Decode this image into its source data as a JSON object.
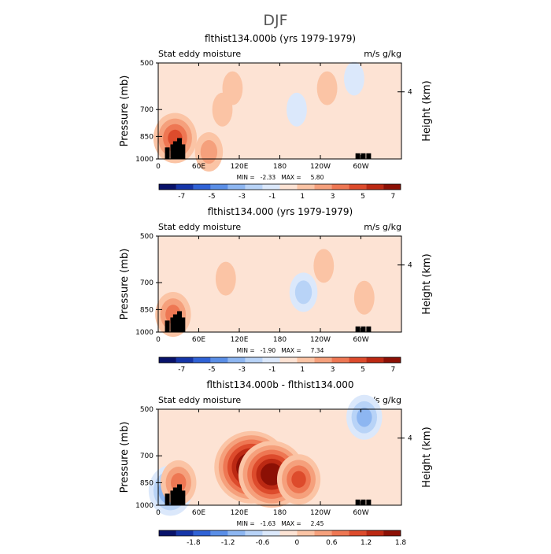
{
  "page_title": "DJF",
  "panels": [
    {
      "title": "flthist134.000b (yrs 1979-1979)",
      "left_label": "Stat eddy moisture",
      "right_label": "m/s g/kg",
      "stats": "MIN =   -2.33   MAX =     5.80",
      "colorbar_ticks": [
        "-7",
        "-5",
        "-3",
        "-1",
        "1",
        "3",
        "5",
        "7"
      ]
    },
    {
      "title": "flthist134.000 (yrs 1979-1979)",
      "left_label": "Stat eddy moisture",
      "right_label": "m/s g/kg",
      "stats": "MIN =   -1.90   MAX =     7.34",
      "colorbar_ticks": [
        "-7",
        "-5",
        "-3",
        "-1",
        "1",
        "3",
        "5",
        "7"
      ]
    },
    {
      "title": "flthist134.000b - flthist134.000",
      "left_label": "Stat eddy moisture",
      "right_label": "m/s g/kg",
      "stats": "MIN =   -1.63   MAX =     2.45",
      "colorbar_ticks": [
        "-1.8",
        "-1.2",
        "-0.6",
        "0",
        "0.6",
        "1.2",
        "1.8"
      ]
    }
  ],
  "axes": {
    "ylabel": "Pressure (mb)",
    "y2label": "Height (km)",
    "yticks": [
      "500",
      "700",
      "850",
      "1000"
    ],
    "y2ticks": [
      "4"
    ],
    "xticks": [
      "0",
      "60E",
      "120E",
      "180",
      "120W",
      "60W"
    ]
  },
  "colors": {
    "scale": [
      "#08126a",
      "#1535a8",
      "#2f62d6",
      "#5a8ee6",
      "#8db6f1",
      "#b8d3f7",
      "#dbe8fb",
      "#fde3d4",
      "#fbc4a5",
      "#f5a07c",
      "#ee7753",
      "#dd4b2c",
      "#bc2913",
      "#8c1005"
    ]
  },
  "chart_data": [
    {
      "type": "heatmap",
      "title": "flthist134.000b (yrs 1979-1979)",
      "variable": "Stat eddy moisture",
      "units": "m/s g/kg",
      "x": [
        0,
        60,
        120,
        180,
        240,
        300
      ],
      "xtick_labels": [
        "0",
        "60E",
        "120E",
        "180",
        "120W",
        "60W"
      ],
      "xlim": [
        0,
        360
      ],
      "ylabel": "Pressure (mb)",
      "y": [
        500,
        700,
        850,
        1000
      ],
      "ylim": [
        1000,
        500
      ],
      "levels": [
        -7,
        -6,
        -5,
        -4,
        -3,
        -2,
        -1,
        0,
        1,
        2,
        3,
        4,
        5,
        6,
        7
      ],
      "min": -2.33,
      "max": 5.8,
      "features": [
        {
          "lon": 25,
          "lev": 860,
          "value": 3.5
        },
        {
          "lon": 75,
          "lev": 950,
          "value": 1.5
        },
        {
          "lon": 95,
          "lev": 700,
          "value": 1.0
        },
        {
          "lon": 110,
          "lev": 600,
          "value": 1.2
        },
        {
          "lon": 205,
          "lev": 700,
          "value": -1.3
        },
        {
          "lon": 250,
          "lev": 600,
          "value": 0.8
        },
        {
          "lon": 290,
          "lev": 560,
          "value": -0.8
        }
      ]
    },
    {
      "type": "heatmap",
      "title": "flthist134.000 (yrs 1979-1979)",
      "variable": "Stat eddy moisture",
      "units": "m/s g/kg",
      "x": [
        0,
        60,
        120,
        180,
        240,
        300
      ],
      "xtick_labels": [
        "0",
        "60E",
        "120E",
        "180",
        "120W",
        "60W"
      ],
      "xlim": [
        0,
        360
      ],
      "ylabel": "Pressure (mb)",
      "y": [
        500,
        700,
        850,
        1000
      ],
      "ylim": [
        1000,
        500
      ],
      "levels": [
        -7,
        -6,
        -5,
        -4,
        -3,
        -2,
        -1,
        0,
        1,
        2,
        3,
        4,
        5,
        6,
        7
      ],
      "min": -1.9,
      "max": 7.34,
      "features": [
        {
          "lon": 22,
          "lev": 880,
          "value": 3.0
        },
        {
          "lon": 100,
          "lev": 680,
          "value": 1.2
        },
        {
          "lon": 215,
          "lev": 750,
          "value": -1.5
        },
        {
          "lon": 245,
          "lev": 620,
          "value": 1.0
        },
        {
          "lon": 305,
          "lev": 780,
          "value": 1.0
        }
      ]
    },
    {
      "type": "heatmap",
      "title": "flthist134.000b - flthist134.000",
      "variable": "Stat eddy moisture",
      "units": "m/s g/kg",
      "x": [
        0,
        60,
        120,
        180,
        240,
        300
      ],
      "xtick_labels": [
        "0",
        "60E",
        "120E",
        "180",
        "120W",
        "60W"
      ],
      "xlim": [
        0,
        360
      ],
      "ylabel": "Pressure (mb)",
      "y": [
        500,
        700,
        850,
        1000
      ],
      "ylim": [
        1000,
        500
      ],
      "levels": [
        -1.8,
        -1.5,
        -1.2,
        -0.9,
        -0.6,
        -0.3,
        0,
        0.3,
        0.6,
        0.9,
        1.2,
        1.5,
        1.8
      ],
      "min": -1.63,
      "max": 2.45,
      "features": [
        {
          "lon": 138,
          "lev": 760,
          "value": 2.3
        },
        {
          "lon": 168,
          "lev": 800,
          "value": 2.0
        },
        {
          "lon": 208,
          "lev": 830,
          "value": 1.3
        },
        {
          "lon": 18,
          "lev": 900,
          "value": -1.2
        },
        {
          "lon": 30,
          "lev": 850,
          "value": 0.9
        },
        {
          "lon": 305,
          "lev": 530,
          "value": -0.8
        }
      ]
    }
  ]
}
